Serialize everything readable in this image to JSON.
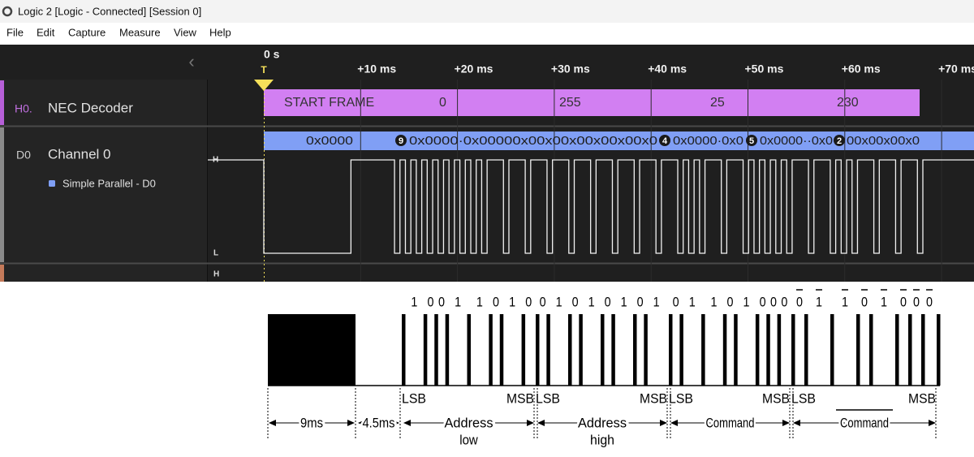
{
  "window": {
    "title": "Logic 2 [Logic - Connected] [Session 0]"
  },
  "menu": [
    "File",
    "Edit",
    "Capture",
    "Measure",
    "View",
    "Help"
  ],
  "timeline": {
    "ticks": [
      "0 s",
      "+10 ms",
      "+20 ms",
      "+30 ms",
      "+40 ms",
      "+50 ms",
      "+60 ms",
      "+70 ms"
    ],
    "trigger": "T"
  },
  "rows": [
    {
      "id": "H0.",
      "name": "NEC Decoder",
      "frames": [
        "START FRAME",
        "0",
        "255",
        "25",
        "230"
      ]
    },
    {
      "id": "D0",
      "name": "Channel 0",
      "analyzer": "Simple Parallel - D0",
      "levels": [
        "H",
        "L"
      ],
      "bubbles": [
        "0x0000",
        "9",
        "0x0000·0x00000x00x00x00x00x00x0",
        "4",
        "0x0000·0x0",
        "5",
        "0x0000··0x0",
        "2",
        "00x00x00x0"
      ]
    },
    {
      "levels": [
        "H"
      ]
    }
  ],
  "diagram": {
    "durations": [
      "9ms",
      "4.5ms"
    ],
    "groups": [
      {
        "bits": [
          "1",
          "0",
          "0",
          "1",
          "1",
          "0",
          "1",
          "0"
        ],
        "lsb": "LSB",
        "msb": "MSB",
        "label": [
          "Address",
          "low"
        ]
      },
      {
        "bits": [
          "0",
          "1",
          "0",
          "1",
          "0",
          "1",
          "0",
          "1"
        ],
        "lsb": "LSB",
        "msb": "MSB",
        "label": [
          "Address",
          "high"
        ]
      },
      {
        "bits": [
          "0",
          "1",
          "1",
          "0",
          "1",
          "0",
          "0",
          "0"
        ],
        "lsb": "LSB",
        "msb": "MSB",
        "label": [
          "Command"
        ]
      },
      {
        "bits": [
          "0",
          "1",
          "1",
          "0",
          "1",
          "0",
          "0",
          "0"
        ],
        "lsb": "LSB",
        "msb": "MSB",
        "label": [
          "Command"
        ],
        "overlined": true
      }
    ]
  }
}
